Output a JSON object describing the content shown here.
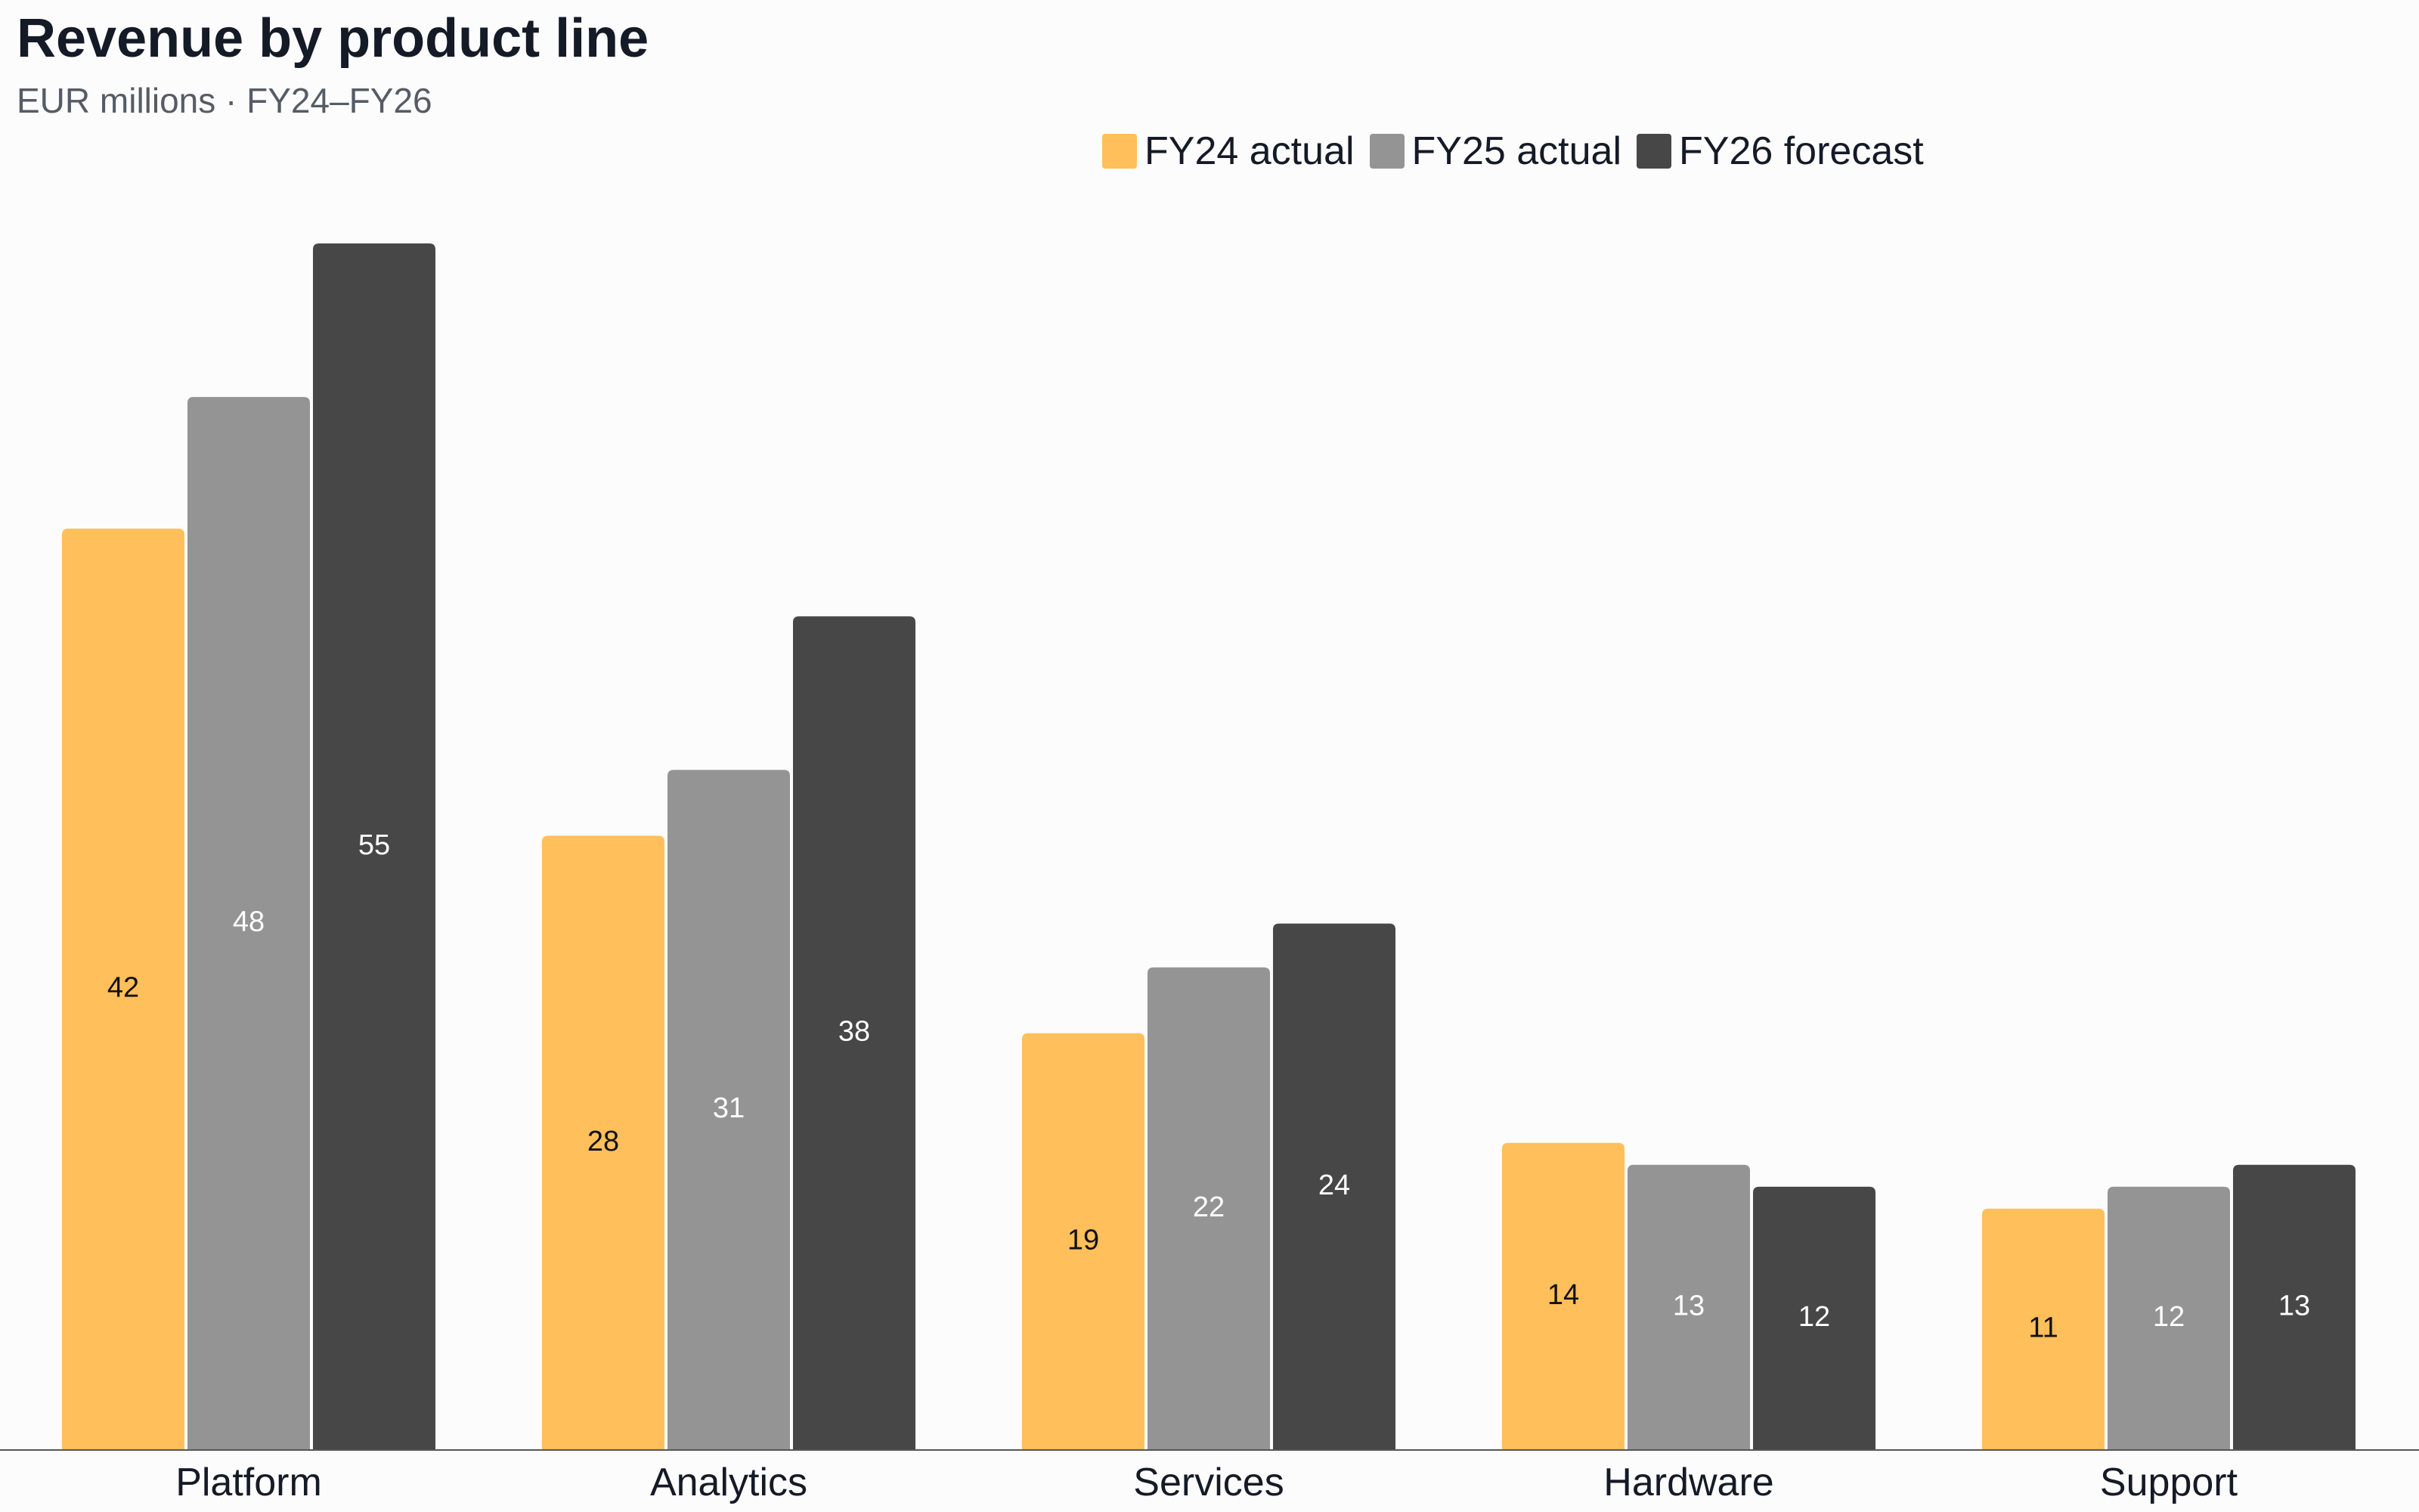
{
  "chart_data": {
    "type": "bar",
    "title": "Revenue by product line",
    "subtitle": "EUR millions · FY24–FY26",
    "xlabel": "",
    "ylabel": "",
    "categories": [
      "Platform",
      "Analytics",
      "Services",
      "Hardware",
      "Support"
    ],
    "series": [
      {
        "name": "FY24 actual",
        "color": "#ffbf5a",
        "label_color": "#111111",
        "values": [
          42,
          28,
          19,
          14,
          11
        ]
      },
      {
        "name": "FY25 actual",
        "color": "#949494",
        "label_color": "#ffffff",
        "values": [
          48,
          31,
          22,
          13,
          12
        ]
      },
      {
        "name": "FY26 forecast",
        "color": "#474747",
        "label_color": "#ffffff",
        "values": [
          55,
          38,
          24,
          12,
          13
        ]
      }
    ],
    "ylim": [
      0,
      55
    ],
    "grid": false,
    "legend_position": "top-right",
    "data_labels": true
  }
}
